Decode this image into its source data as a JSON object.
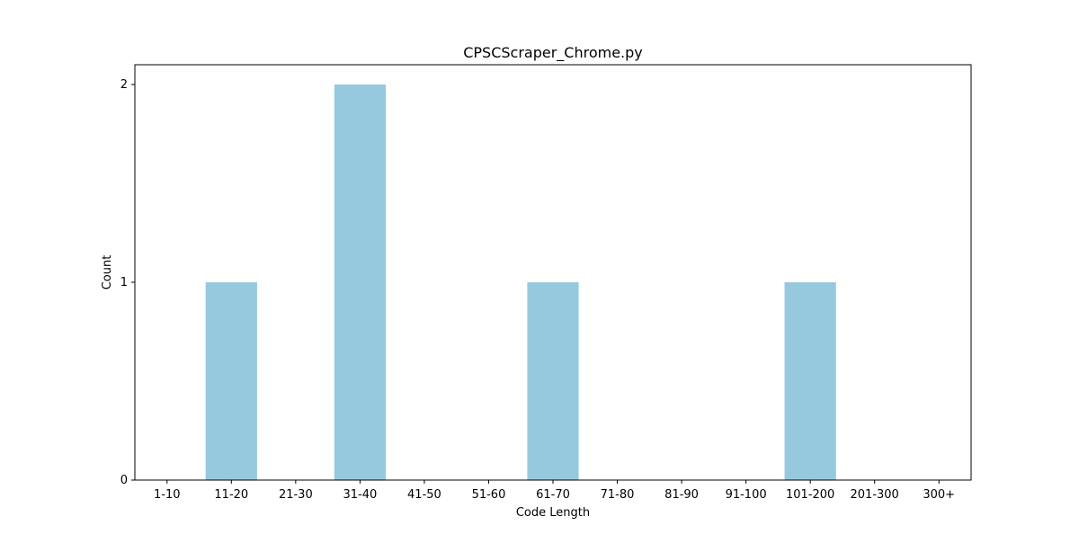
{
  "chart_data": {
    "type": "bar",
    "title": "CPSCScraper_Chrome.py",
    "xlabel": "Code Length",
    "ylabel": "Count",
    "categories": [
      "1-10",
      "11-20",
      "21-30",
      "31-40",
      "41-50",
      "51-60",
      "61-70",
      "71-80",
      "81-90",
      "91-100",
      "101-200",
      "201-300",
      "300+"
    ],
    "values": [
      0,
      1,
      0,
      2,
      0,
      0,
      1,
      0,
      0,
      0,
      1,
      0,
      0
    ],
    "yticks": [
      "0",
      "1",
      "2"
    ],
    "ylim": [
      0,
      2.1
    ],
    "grid": false,
    "bar_color": "#96c9de"
  }
}
